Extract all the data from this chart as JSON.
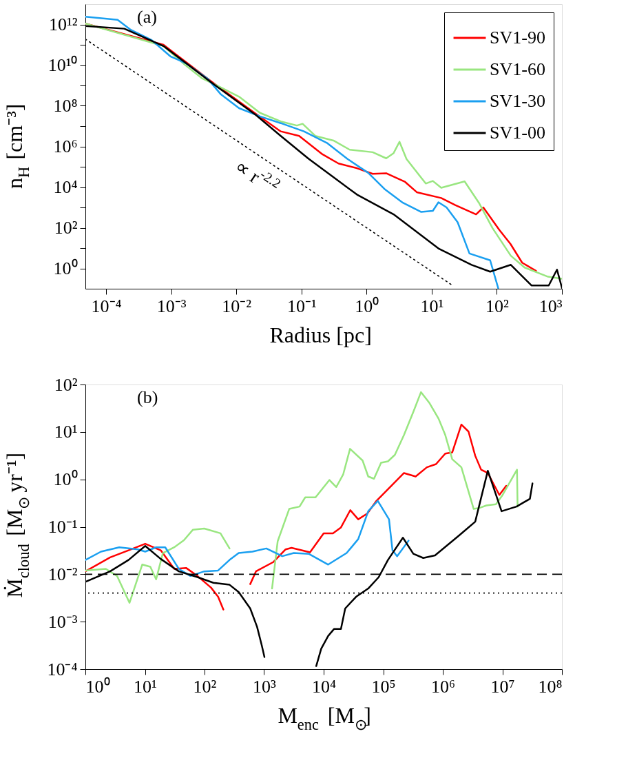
{
  "chart_data": [
    {
      "type": "line",
      "xlabel": "Radius [pc]",
      "ylabel": "n$_{H}$ [cm⁻³]",
      "log": "xy",
      "legend": "top right",
      "xlim": [
        4.8e-05,
        1000
      ],
      "ylim": [
        0.1,
        10000000000000.0
      ],
      "xticks": [
        {
          "value": 0.0001,
          "label": "10⁻⁴"
        },
        {
          "value": 0.001,
          "label": "10⁻³"
        },
        {
          "value": 0.01,
          "label": "10⁻²"
        },
        {
          "value": 0.1,
          "label": "10⁻¹"
        },
        {
          "value": 1,
          "label": "10⁰"
        },
        {
          "value": 10,
          "label": "10¹"
        },
        {
          "value": 100,
          "label": "10²"
        },
        {
          "value": 1000,
          "label": "10³"
        }
      ],
      "yticks": [
        {
          "value": 1,
          "label": "10⁰"
        },
        {
          "value": 10,
          "label": null
        },
        {
          "value": 100,
          "label": "10²"
        },
        {
          "value": 1000,
          "label": null
        },
        {
          "value": 10000,
          "label": "10⁴"
        },
        {
          "value": 100000,
          "label": null
        },
        {
          "value": 1000000,
          "label": "10⁶"
        },
        {
          "value": 10000000,
          "label": null
        },
        {
          "value": 100000000,
          "label": "10⁸"
        },
        {
          "value": 1000000000,
          "label": null
        },
        {
          "value": 10000000000,
          "label": "10¹⁰"
        },
        {
          "value": 100000000000,
          "label": null
        },
        {
          "value": 1000000000000,
          "label": "10¹²"
        }
      ],
      "annotations": [
        "(a)",
        {
          "text": "∝ r$^{-2.2}$",
          "x": 0.03,
          "y": 190000
        }
      ],
      "series": [
        {
          "name": "SV1-90",
          "color": "#ff0000",
          "x": [
            4.8e-05,
            0.00076,
            0.0042,
            0.02,
            0.048,
            0.092,
            0.21,
            0.37,
            0.71,
            1.24,
            2.0,
            3.9,
            5.9,
            14,
            23,
            48,
            62,
            110,
            162,
            245,
            400
          ],
          "values": [
            1100000000000.0,
            100000000000.0,
            1500000000.0,
            40000000.0,
            5500000.0,
            3300000.0,
            410000.0,
            145000.0,
            85000.0,
            45000.0,
            48000.0,
            18000.0,
            5600.0,
            2900.0,
            1300.0,
            457,
            1000.0,
            76,
            16,
            1.9,
            0.76
          ]
        },
        {
          "name": "SV1-60",
          "color": "#99e680",
          "x": [
            4.8e-05,
            0.00076,
            0.0016,
            0.003,
            0.0053,
            0.011,
            0.023,
            0.048,
            0.085,
            0.104,
            0.163,
            0.31,
            0.55,
            1.24,
            2.0,
            2.6,
            3.2,
            4.1,
            8.1,
            10.4,
            14,
            32,
            53,
            86,
            164,
            267,
            612,
            1000
          ],
          "values": [
            1100000000000.0,
            87000000000.0,
            10700000000.0,
            2200000000.0,
            910000000.0,
            280000000.0,
            45000000.0,
            17000000.0,
            10700000.0,
            13000000.0,
            3300000.0,
            1950000.0,
            690000.0,
            520000.0,
            260000.0,
            470000.0,
            1700000.0,
            240000.0,
            15000.0,
            20000.0,
            9300.0,
            19000.0,
            1700.0,
            95,
            4.2,
            1.1,
            0.39,
            0.31
          ]
        },
        {
          "name": "SV1-30",
          "color": "#1a9ff0",
          "x": [
            4.8e-05,
            0.00015,
            0.00024,
            0.0005,
            0.00097,
            0.0017,
            0.0036,
            0.0058,
            0.011,
            0.023,
            0.048,
            0.109,
            0.245,
            0.51,
            1.06,
            1.88,
            3.6,
            6.9,
            10.4,
            12.7,
            16.9,
            25,
            38,
            79,
            105
          ],
          "values": [
            2400000000000.0,
            1700000000000.0,
            540000000000.0,
            170000000000.0,
            27000000000.0,
            12000000000.0,
            2200000000.0,
            360000000.0,
            76000000.0,
            30000000.0,
            14000000.0,
            5500000.0,
            1500000.0,
            240000.0,
            50000.0,
            8100.0,
            1700.0,
            600,
            680,
            1800.0,
            1000.0,
            186,
            5.4,
            2.5,
            0.107
          ]
        },
        {
          "name": "SV1-00",
          "color": "#000000",
          "x": [
            4.8e-05,
            0.00019,
            0.00076,
            0.0042,
            0.02,
            0.048,
            0.128,
            0.71,
            2.6,
            13,
            41,
            79,
            164,
            340,
            627,
            840,
            1000
          ],
          "values": [
            840000000000.0,
            620000000000.0,
            87000000000.0,
            1350000000.0,
            35000000.0,
            3300000.0,
            250000.0,
            4300.0,
            457,
            9.1,
            1.5,
            0.69,
            1.5,
            0.145,
            0.145,
            0.87,
            0.11
          ]
        },
        {
          "type": "line",
          "color": "#000000",
          "line_style": "dotted",
          "x": [
            4.8e-05,
            20
          ],
          "values": [
            190000000000.0,
            0.16
          ]
        }
      ]
    },
    {
      "type": "line",
      "xlabel": "M$_{enc}$ [M$_{⊙}$]",
      "ylabel": "Ṁ$_{cloud}$ [M$_{⊙}$ yr⁻¹]",
      "log": "xy",
      "xlim": [
        1,
        100000000
      ],
      "ylim": [
        0.0001,
        100
      ],
      "xticks": [
        {
          "value": 1,
          "label": "10⁰"
        },
        {
          "value": 10,
          "label": "10¹"
        },
        {
          "value": 100,
          "label": "10²"
        },
        {
          "value": 1000,
          "label": "10³"
        },
        {
          "value": 10000,
          "label": "10⁴"
        },
        {
          "value": 100000,
          "label": "10⁵"
        },
        {
          "value": 1000000,
          "label": "10⁶"
        },
        {
          "value": 10000000,
          "label": "10⁷"
        },
        {
          "value": 100000000,
          "label": "10⁸"
        }
      ],
      "yticks": [
        {
          "value": 0.0001,
          "label": "10⁻⁴"
        },
        {
          "value": 0.001,
          "label": "10⁻³"
        },
        {
          "value": 0.01,
          "label": "10⁻²"
        },
        {
          "value": 0.1,
          "label": "10⁻¹"
        },
        {
          "value": 1,
          "label": "10⁰"
        },
        {
          "value": 10,
          "label": "10¹"
        },
        {
          "value": 100,
          "label": "10²"
        }
      ],
      "annotations": [
        "(b)"
      ],
      "ref_lines": [
        {
          "axis": "y",
          "value": 0.01,
          "color": "#000000",
          "line_style": "dashed"
        },
        {
          "axis": "y",
          "value": 0.004,
          "color": "#000000",
          "line_style": "dotted"
        }
      ],
      "series": [
        {
          "color": "#ff0000",
          "x": [
            1,
            2.6,
            5.3,
            10.1,
            18.4,
            31,
            49,
            76,
            129,
            169,
            207,
            400,
            585,
            730,
            1420,
            2300,
            2890,
            5900,
            10000,
            14300,
            19500,
            28000,
            38000,
            54000,
            77000,
            223000,
            350000,
            540000,
            770000,
            1100000,
            1440000,
            2050000,
            2700000,
            3500000,
            4400000,
            5700000,
            8900000,
            11600000
          ],
          "values": [
            0.0115,
            0.0226,
            0.032,
            0.044,
            0.032,
            0.013,
            0.0136,
            0.0092,
            0.0052,
            0.00335,
            0.0018,
            null,
            0.0062,
            0.0115,
            0.018,
            0.0335,
            0.036,
            0.029,
            0.073,
            0.073,
            0.097,
            0.225,
            0.144,
            0.19,
            0.353,
            1.36,
            1.15,
            1.8,
            2.1,
            3.5,
            3.7,
            14.3,
            10.2,
            3.15,
            1.6,
            1.36,
            0.47,
            0.73
          ]
        },
        {
          "color": "#99e680",
          "x": [
            1,
            2.2,
            3.4,
            5.5,
            9.0,
            12.3,
            15.4,
            20,
            31,
            45,
            64,
            99,
            185,
            263,
            700,
            1360,
            1690,
            2640,
            3940,
            4900,
            7300,
            12500,
            16300,
            21300,
            27700,
            45000,
            56000,
            70000,
            92000,
            120000,
            157000,
            223000,
            320000,
            430000,
            590000,
            850000,
            1100000,
            1440000,
            2050000,
            3300000,
            4200000,
            5400000,
            7800000,
            10100000,
            17600000,
            18000000
          ],
          "values": [
            0.012,
            0.013,
            0.0092,
            0.0025,
            0.016,
            0.0144,
            0.0078,
            0.028,
            0.037,
            0.052,
            0.087,
            0.092,
            0.073,
            0.035,
            null,
            0.005,
            0.0495,
            0.238,
            0.267,
            0.418,
            0.418,
            0.97,
            0.69,
            1.28,
            4.4,
            2.5,
            1.15,
            1.03,
            2.25,
            2.4,
            3.3,
            8.6,
            26.5,
            69,
            41.6,
            19,
            8.6,
            2.66,
            1.8,
            0.238,
            0.252,
            0.282,
            0.3,
            0.47,
            1.6,
            0.267
          ]
        },
        {
          "color": "#1a9ff0",
          "x": [
            1,
            1.83,
            3.7,
            7.6,
            10.1,
            15.4,
            21.9,
            37,
            58,
            99,
            169,
            263,
            375,
            638,
            1090,
            2020,
            3150,
            5600,
            11900,
            24300,
            38000,
            56000,
            81000,
            125000,
            143000,
            171000,
            266000
          ],
          "values": [
            0.02,
            0.03,
            0.037,
            0.0335,
            0.03,
            0.037,
            0.037,
            0.013,
            0.0092,
            0.0115,
            0.012,
            0.02,
            0.028,
            0.03,
            0.035,
            0.024,
            0.028,
            0.027,
            0.016,
            0.028,
            0.055,
            0.213,
            0.353,
            0.144,
            0.032,
            0.024,
            0.051
          ]
        },
        {
          "color": "#000000",
          "x": [
            1,
            2.6,
            5.3,
            10.1,
            18.4,
            37,
            76,
            141,
            263,
            375,
            585,
            762,
            912,
            1014,
            3000,
            7500,
            9100,
            11900,
            14900,
            19500,
            23000,
            35000,
            56000,
            84000,
            120000,
            214000,
            320000,
            470000,
            740000,
            1880000,
            3500000,
            5700000,
            9700000,
            17300000,
            29000000,
            32000000
          ],
          "values": [
            0.0069,
            0.0115,
            0.02,
            0.0395,
            0.021,
            0.0115,
            0.0087,
            0.0066,
            0.006,
            0.0042,
            0.0019,
            0.00078,
            0.00032,
            0.00018,
            null,
            0.000116,
            0.00027,
            0.0005,
            0.0007,
            0.0007,
            0.0019,
            0.00335,
            0.005,
            0.0087,
            0.02,
            0.059,
            0.027,
            0.022,
            0.025,
            0.066,
            0.128,
            1.52,
            0.213,
            0.267,
            0.39,
            0.82
          ]
        }
      ]
    }
  ]
}
